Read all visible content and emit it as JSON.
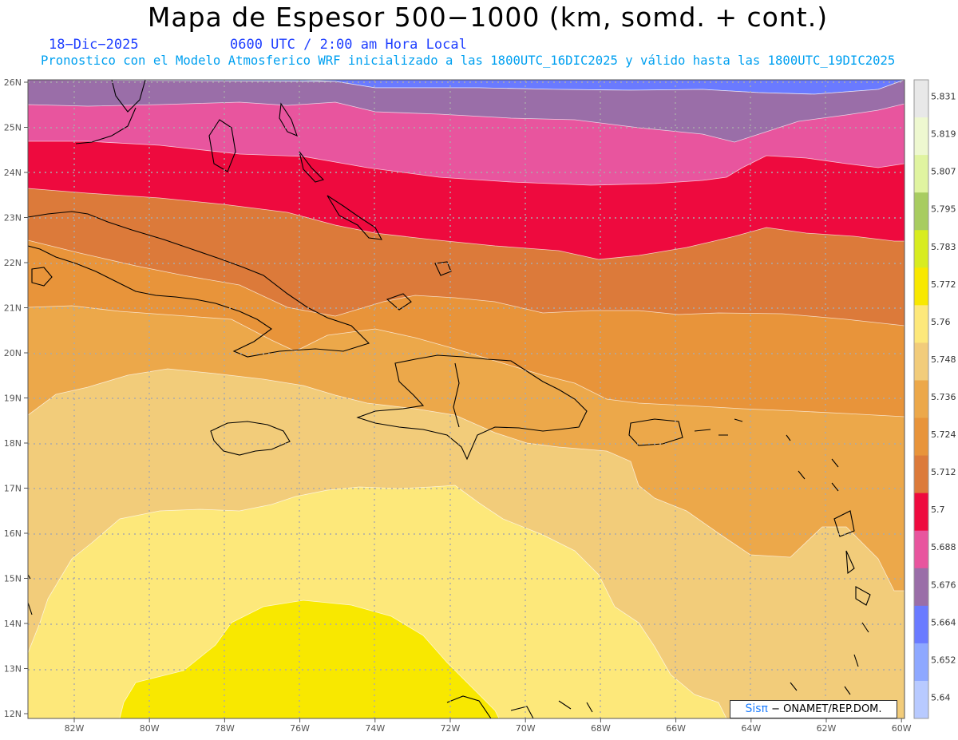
{
  "title": "Mapa de Espesor 500−1000 (km, somd. + cont.)",
  "date": "18−Dic−2025",
  "valid_time": "0600 UTC / 2:00 am Hora Local",
  "model_info": "Pronostico con el Modelo Atmosferico WRF inicializado a las 1800UTC_16DIC2025 y válido hasta las  1800UTC_19DIC2025",
  "credit": {
    "brand": "Sisπ",
    "text": "− ONAMET/REP.DOM."
  },
  "lat_labels": [
    "26N",
    "25N",
    "24N",
    "23N",
    "22N",
    "21N",
    "20N",
    "19N",
    "18N",
    "17N",
    "16N",
    "15N",
    "14N",
    "13N",
    "12N"
  ],
  "lon_labels": [
    "82W",
    "80W",
    "78W",
    "76W",
    "74W",
    "72W",
    "70W",
    "68W",
    "66W",
    "64W",
    "62W",
    "60W"
  ],
  "colorbar": {
    "labels": [
      "5.831",
      "5.819",
      "5.807",
      "5.795",
      "5.783",
      "5.772",
      "5.76",
      "5.748",
      "5.736",
      "5.724",
      "5.712",
      "5.7",
      "5.688",
      "5.676",
      "5.664",
      "5.652",
      "5.64"
    ],
    "colors": [
      "#e8e8e8",
      "#eef8d0",
      "#e0f4a0",
      "#a8cc60",
      "#d8ec20",
      "#f8e800",
      "#fde87a",
      "#f2cc7a",
      "#eca84a",
      "#e8943a",
      "#dc7a3a",
      "#ee0a3e",
      "#e8559e",
      "#9a6ea8",
      "#6a7aff",
      "#8ea8ff",
      "#b8caff"
    ]
  },
  "bands": [
    {
      "value": "5.652",
      "color": "#8ea8ff"
    },
    {
      "value": "5.664",
      "color": "#6a7aff"
    },
    {
      "value": "5.676",
      "color": "#9a6ea8"
    },
    {
      "value": "5.688",
      "color": "#e8559e"
    },
    {
      "value": "5.7",
      "color": "#ee0a3e"
    },
    {
      "value": "5.712",
      "color": "#dc7a3a"
    },
    {
      "value": "5.724",
      "color": "#e8943a"
    },
    {
      "value": "5.736",
      "color": "#eca84a"
    },
    {
      "value": "5.748",
      "color": "#f2cc7a"
    },
    {
      "value": "5.76",
      "color": "#fde87a"
    },
    {
      "value": "5.772",
      "color": "#f8e800"
    }
  ]
}
